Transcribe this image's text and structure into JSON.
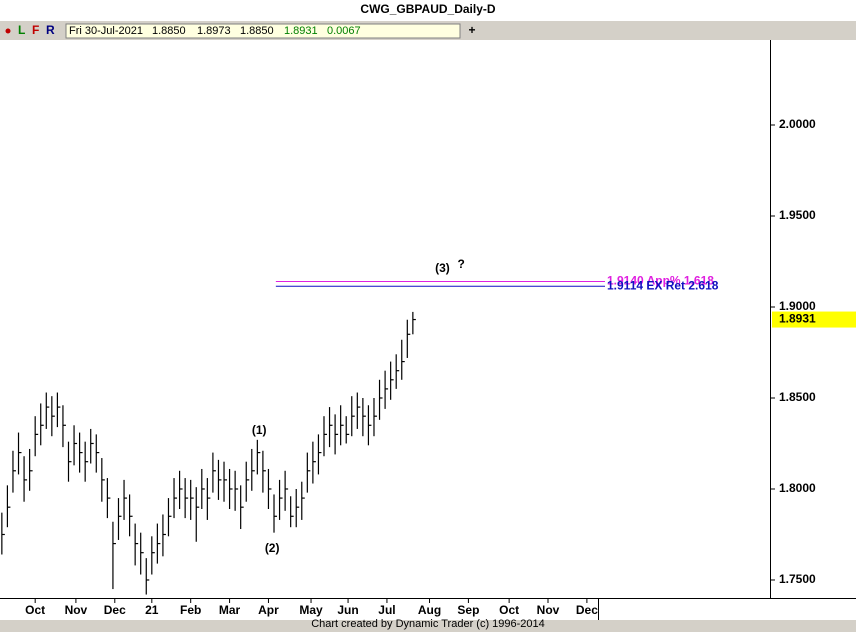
{
  "header": {
    "title": "CWG_GBPAUD_Daily-D",
    "toolbar": [
      "L",
      "F",
      "R"
    ],
    "add_button": "+",
    "quote": {
      "date": "Fri 30-Jul-2021",
      "open": "1.8850",
      "high": "1.8973",
      "low": "1.8850",
      "close": "1.8931",
      "change": "0.0067"
    }
  },
  "footer": "Chart created by Dynamic Trader  (c) 1996-2014",
  "chart_data": {
    "type": "ohlc",
    "color": "#000000",
    "x": [
      0,
      3,
      6,
      9,
      12,
      15,
      18,
      21,
      24,
      27,
      30,
      33,
      36,
      39,
      42,
      45,
      48,
      51,
      54,
      57,
      60,
      63,
      66,
      69,
      72,
      75,
      78,
      81,
      84,
      87,
      90,
      93,
      96,
      99,
      102,
      105,
      108,
      111,
      114,
      117,
      120,
      123,
      126,
      129,
      132,
      135,
      138,
      141,
      144,
      147,
      150,
      153,
      156,
      159,
      162,
      165,
      168,
      171,
      174,
      177,
      180,
      183,
      186,
      189,
      192,
      195,
      198,
      201,
      204,
      207,
      210,
      213,
      216,
      219,
      222
    ],
    "close": [
      1.775,
      1.79,
      1.81,
      1.82,
      1.805,
      1.81,
      1.83,
      1.835,
      1.845,
      1.84,
      1.845,
      1.835,
      1.815,
      1.825,
      1.82,
      1.815,
      1.825,
      1.82,
      1.805,
      1.795,
      1.77,
      1.785,
      1.795,
      1.785,
      1.77,
      1.765,
      1.75,
      1.765,
      1.77,
      1.775,
      1.785,
      1.795,
      1.8,
      1.795,
      1.795,
      1.79,
      1.8,
      1.795,
      1.81,
      1.805,
      1.805,
      1.8,
      1.8,
      1.79,
      1.805,
      1.81,
      1.82,
      1.81,
      1.8,
      1.785,
      1.795,
      1.8,
      1.785,
      1.79,
      1.795,
      1.81,
      1.815,
      1.82,
      1.83,
      1.835,
      1.83,
      1.835,
      1.83,
      1.84,
      1.845,
      1.84,
      1.835,
      1.84,
      1.85,
      1.855,
      1.86,
      1.865,
      1.87,
      1.885,
      1.8931
    ],
    "high": [
      1.787,
      1.802,
      1.821,
      1.831,
      1.818,
      1.822,
      1.84,
      1.847,
      1.853,
      1.851,
      1.853,
      1.846,
      1.826,
      1.835,
      1.831,
      1.826,
      1.833,
      1.83,
      1.817,
      1.806,
      1.782,
      1.795,
      1.805,
      1.797,
      1.781,
      1.776,
      1.762,
      1.774,
      1.781,
      1.786,
      1.795,
      1.806,
      1.81,
      1.806,
      1.805,
      1.801,
      1.811,
      1.806,
      1.82,
      1.816,
      1.815,
      1.811,
      1.81,
      1.802,
      1.815,
      1.822,
      1.827,
      1.821,
      1.811,
      1.797,
      1.805,
      1.81,
      1.796,
      1.8,
      1.804,
      1.82,
      1.826,
      1.83,
      1.84,
      1.845,
      1.841,
      1.846,
      1.84,
      1.851,
      1.853,
      1.85,
      1.846,
      1.85,
      1.86,
      1.865,
      1.87,
      1.874,
      1.882,
      1.893,
      1.8973
    ],
    "low": [
      1.764,
      1.779,
      1.798,
      1.808,
      1.793,
      1.799,
      1.818,
      1.824,
      1.833,
      1.829,
      1.834,
      1.823,
      1.804,
      1.813,
      1.809,
      1.804,
      1.814,
      1.809,
      1.793,
      1.784,
      1.745,
      1.772,
      1.783,
      1.774,
      1.758,
      1.753,
      1.742,
      1.753,
      1.759,
      1.763,
      1.774,
      1.784,
      1.789,
      1.784,
      1.783,
      1.771,
      1.789,
      1.783,
      1.798,
      1.794,
      1.793,
      1.789,
      1.788,
      1.778,
      1.793,
      1.799,
      1.808,
      1.798,
      1.789,
      1.776,
      1.783,
      1.788,
      1.779,
      1.779,
      1.783,
      1.798,
      1.803,
      1.808,
      1.818,
      1.823,
      1.819,
      1.824,
      1.825,
      1.829,
      1.833,
      1.829,
      1.824,
      1.829,
      1.838,
      1.844,
      1.849,
      1.855,
      1.86,
      1.872,
      1.885
    ],
    "xlim": [
      -1,
      322
    ],
    "xticks": [
      {
        "value": 18,
        "label": "Oct"
      },
      {
        "value": 40,
        "label": "Nov"
      },
      {
        "value": 61,
        "label": "Dec"
      },
      {
        "value": 81,
        "label": "21"
      },
      {
        "value": 102,
        "label": "Feb"
      },
      {
        "value": 123,
        "label": "Mar"
      },
      {
        "value": 144,
        "label": "Apr"
      },
      {
        "value": 167,
        "label": "May"
      },
      {
        "value": 187,
        "label": "Jun"
      },
      {
        "value": 208,
        "label": "Jul"
      },
      {
        "value": 231,
        "label": "Aug"
      },
      {
        "value": 252,
        "label": "Sep"
      },
      {
        "value": 274,
        "label": "Oct"
      },
      {
        "value": 295,
        "label": "Nov"
      },
      {
        "value": 316,
        "label": "Dec"
      }
    ],
    "ylim": [
      1.7401,
      2.0467
    ],
    "yticks": [
      {
        "value": 1.75,
        "label": "1.7500"
      },
      {
        "value": 1.8,
        "label": "1.8000"
      },
      {
        "value": 1.85,
        "label": "1.8500"
      },
      {
        "value": 1.9,
        "label": "1.9000"
      },
      {
        "value": 1.95,
        "label": "1.9500"
      },
      {
        "value": 2.0,
        "label": "2.0000"
      }
    ],
    "last_price": {
      "value": 1.8931,
      "label": "1.8931",
      "color": "#ffff00"
    },
    "levels": [
      {
        "value": 1.914,
        "start": 148,
        "label": "1.9140 App% 1.618",
        "color": "#e020e0"
      },
      {
        "value": 1.9114,
        "start": 148,
        "label": "1.9114 EX Ret 2.618",
        "color": "#1010c0"
      }
    ],
    "annotations": [
      {
        "text": "(1)",
        "x": 139,
        "y": 1.832
      },
      {
        "text": "(2)",
        "x": 146,
        "y": 1.767
      },
      {
        "text": "(3)",
        "sup": "?",
        "x": 238,
        "y": 1.921
      }
    ]
  }
}
